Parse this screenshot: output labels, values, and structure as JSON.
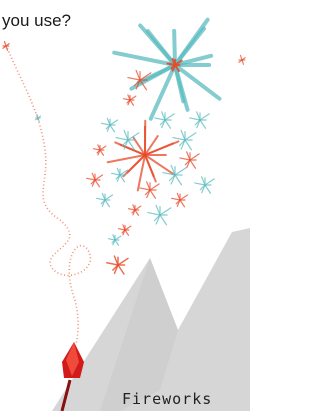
{
  "texts": {
    "question": "you use?",
    "caption": "Fireworks"
  }
}
